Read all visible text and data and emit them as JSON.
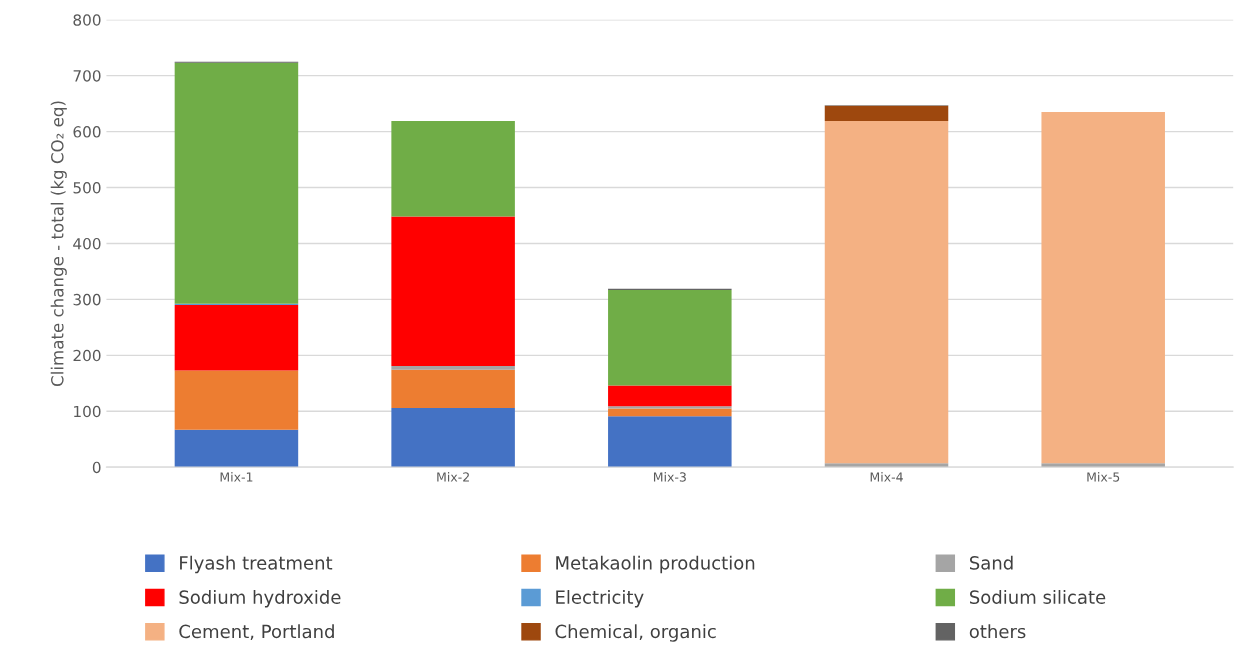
{
  "chart_data": {
    "type": "bar",
    "stacked": true,
    "ylabel": "Climate change - total (kg CO₂ eq)",
    "categories": [
      "Mix-1",
      "Mix-2",
      "Mix-3",
      "Mix-4",
      "Mix-5"
    ],
    "series": [
      {
        "name": "Flyash treatment",
        "color": "#4472c4",
        "values": [
          67,
          106,
          91,
          0,
          0
        ]
      },
      {
        "name": "Metakaolin production",
        "color": "#ed7d31",
        "values": [
          106,
          68,
          14,
          0,
          0
        ]
      },
      {
        "name": "Sand",
        "color": "#a5a5a5",
        "values": [
          0,
          7,
          4,
          7,
          7
        ]
      },
      {
        "name": "Sodium hydroxide",
        "color": "#ff0000",
        "values": [
          117,
          267,
          37,
          0,
          0
        ]
      },
      {
        "name": "Electricity",
        "color": "#5b9bd5",
        "values": [
          2,
          0,
          0,
          0,
          0
        ]
      },
      {
        "name": "Sodium silicate",
        "color": "#70ad47",
        "values": [
          431,
          171,
          171,
          0,
          0
        ]
      },
      {
        "name": "Cement, Portland",
        "color": "#f4b183",
        "values": [
          0,
          0,
          0,
          612,
          628
        ]
      },
      {
        "name": "Chemical, organic",
        "color": "#9e480e",
        "values": [
          0,
          0,
          0,
          27,
          0
        ]
      },
      {
        "name": "others",
        "color": "#636363",
        "values": [
          2,
          0,
          2,
          1,
          0
        ]
      }
    ],
    "ylim": [
      0,
      800
    ],
    "yticks": [
      0,
      100,
      200,
      300,
      400,
      500,
      600,
      700,
      800
    ],
    "grid": "y",
    "legend": "bottom"
  }
}
